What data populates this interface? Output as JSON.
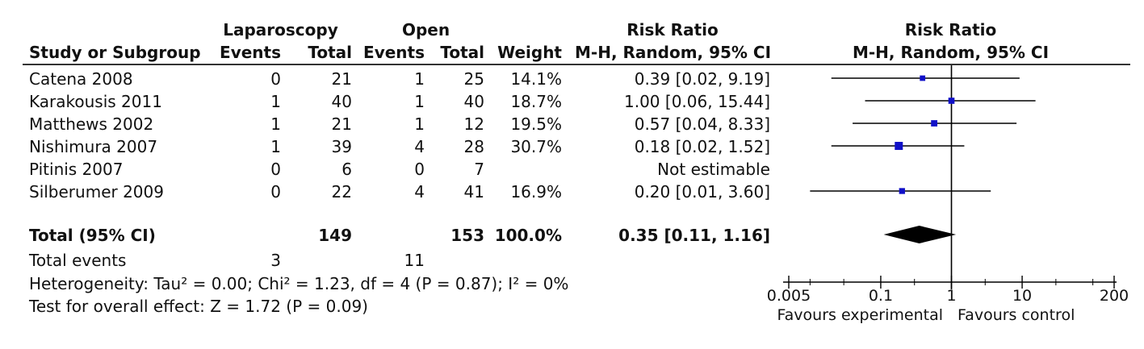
{
  "table": {
    "col_headers": {
      "group1": "Laparoscopy",
      "group2": "Open",
      "rr_top": "Risk Ratio",
      "study": "Study or Subgroup",
      "events1": "Events",
      "total1": "Total",
      "events2": "Events",
      "total2": "Total",
      "weight": "Weight",
      "rr_method": "M-H, Random, 95% CI"
    },
    "rows": [
      {
        "study": "Catena 2008",
        "events1": "0",
        "total1": "21",
        "events2": "1",
        "total2": "25",
        "weight": "14.1%",
        "rr": "0.39 [0.02, 9.19]"
      },
      {
        "study": "Karakousis 2011",
        "events1": "1",
        "total1": "40",
        "events2": "1",
        "total2": "40",
        "weight": "18.7%",
        "rr": "1.00 [0.06, 15.44]"
      },
      {
        "study": "Matthews 2002",
        "events1": "1",
        "total1": "21",
        "events2": "1",
        "total2": "12",
        "weight": "19.5%",
        "rr": "0.57 [0.04, 8.33]"
      },
      {
        "study": "Nishimura 2007",
        "events1": "1",
        "total1": "39",
        "events2": "4",
        "total2": "28",
        "weight": "30.7%",
        "rr": "0.18 [0.02, 1.52]"
      },
      {
        "study": "Pitinis 2007",
        "events1": "0",
        "total1": "6",
        "events2": "0",
        "total2": "7",
        "weight": "",
        "rr": "Not estimable"
      },
      {
        "study": "Silberumer 2009",
        "events1": "0",
        "total1": "22",
        "events2": "4",
        "total2": "41",
        "weight": "16.9%",
        "rr": "0.20 [0.01, 3.60]"
      }
    ],
    "total_row": {
      "label": "Total (95% CI)",
      "total1": "149",
      "total2": "153",
      "weight": "100.0%",
      "rr": "0.35 [0.11, 1.16]"
    },
    "total_events": {
      "label": "Total events",
      "events1": "3",
      "events2": "11"
    },
    "heterogeneity": "Heterogeneity: Tau² = 0.00; Chi² = 1.23, df = 4 (P = 0.87); I² = 0%",
    "overall_effect": "Test for overall effect: Z = 1.72 (P = 0.09)"
  },
  "chart_data": {
    "type": "scatter",
    "title": "Risk Ratio",
    "subtitle": "M-H, Random, 95% CI",
    "x_scale": "log",
    "xlim": [
      0.005,
      200
    ],
    "x_ticks": [
      "0.005",
      "0.1",
      "1",
      "10",
      "200"
    ],
    "x_tick_values": [
      0.005,
      0.1,
      1,
      10,
      200
    ],
    "reference_line": 1,
    "left_label": "Favours experimental",
    "right_label": "Favours control",
    "studies": [
      {
        "name": "Catena 2008",
        "rr": 0.39,
        "lower": 0.02,
        "upper": 9.19,
        "weight": 14.1
      },
      {
        "name": "Karakousis 2011",
        "rr": 1.0,
        "lower": 0.06,
        "upper": 15.44,
        "weight": 18.7
      },
      {
        "name": "Matthews 2002",
        "rr": 0.57,
        "lower": 0.04,
        "upper": 8.33,
        "weight": 19.5
      },
      {
        "name": "Nishimura 2007",
        "rr": 0.18,
        "lower": 0.02,
        "upper": 1.52,
        "weight": 30.7
      },
      {
        "name": "Pitinis 2007",
        "rr": null,
        "lower": null,
        "upper": null,
        "weight": null
      },
      {
        "name": "Silberumer 2009",
        "rr": 0.2,
        "lower": 0.01,
        "upper": 3.6,
        "weight": 16.9
      }
    ],
    "pooled": {
      "rr": 0.35,
      "lower": 0.11,
      "upper": 1.16
    },
    "colors": {
      "marker": "#1010c8",
      "line": "#000000",
      "diamond": "#000000"
    }
  }
}
